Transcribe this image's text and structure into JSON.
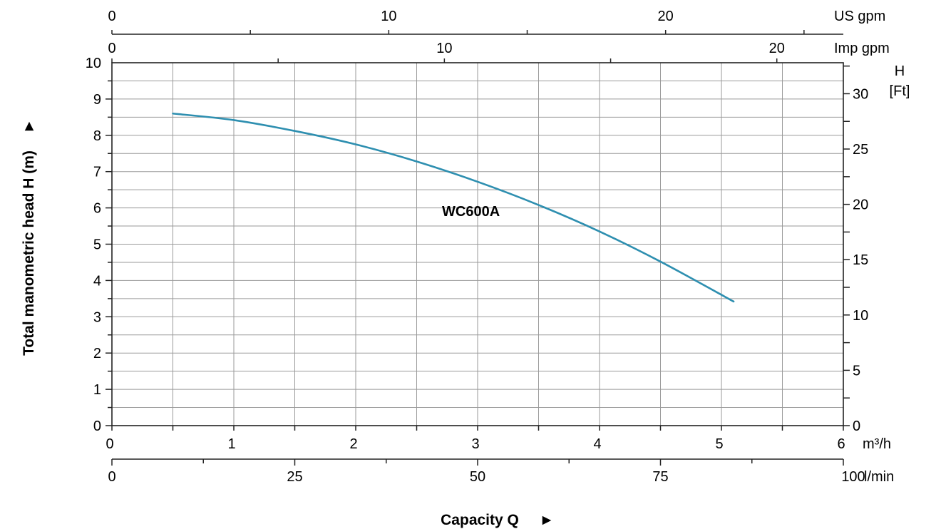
{
  "chart_data": {
    "type": "line",
    "series": [
      {
        "name": "WC600A",
        "color": "#2e8fb0",
        "x": [
          0.5,
          1.0,
          1.5,
          2.0,
          2.5,
          3.0,
          3.5,
          4.0,
          4.5,
          5.1
        ],
        "y": [
          8.6,
          8.42,
          8.12,
          7.75,
          7.28,
          6.72,
          6.08,
          5.35,
          4.52,
          3.42
        ]
      }
    ],
    "xlabel": "Capacity Q",
    "xlabel_arrow": "►",
    "ylabel": "Total manometric head H (m)",
    "ylabel_arrow": "►",
    "xlim": [
      0,
      6
    ],
    "ylim": [
      0,
      10
    ],
    "grid": true,
    "axes": {
      "bottom_m3h": {
        "unit": "m³/h",
        "ticks": [
          "0",
          "1",
          "2",
          "3",
          "4",
          "5",
          "6"
        ]
      },
      "bottom_lmin": {
        "unit": "l/min",
        "ticks": [
          "0",
          "25",
          "50",
          "75",
          "100"
        ],
        "range": [
          0,
          100
        ]
      },
      "top_us_gpm": {
        "unit": "US  gpm",
        "ticks": [
          "0",
          "10",
          "20"
        ],
        "range": [
          0,
          26.42
        ]
      },
      "top_imp_gpm": {
        "unit": "Imp gpm",
        "ticks": [
          "0",
          "10",
          "20"
        ],
        "range": [
          0,
          22.0
        ]
      },
      "left_m": {
        "ticks": [
          "0",
          "1",
          "2",
          "3",
          "4",
          "5",
          "6",
          "7",
          "8",
          "9",
          "10"
        ]
      },
      "right_ft": {
        "title_line1": "H",
        "title_line2": "[Ft]",
        "ticks": [
          "0",
          "5",
          "10",
          "15",
          "20",
          "25",
          "30"
        ],
        "range": [
          0,
          32.8
        ]
      }
    }
  }
}
